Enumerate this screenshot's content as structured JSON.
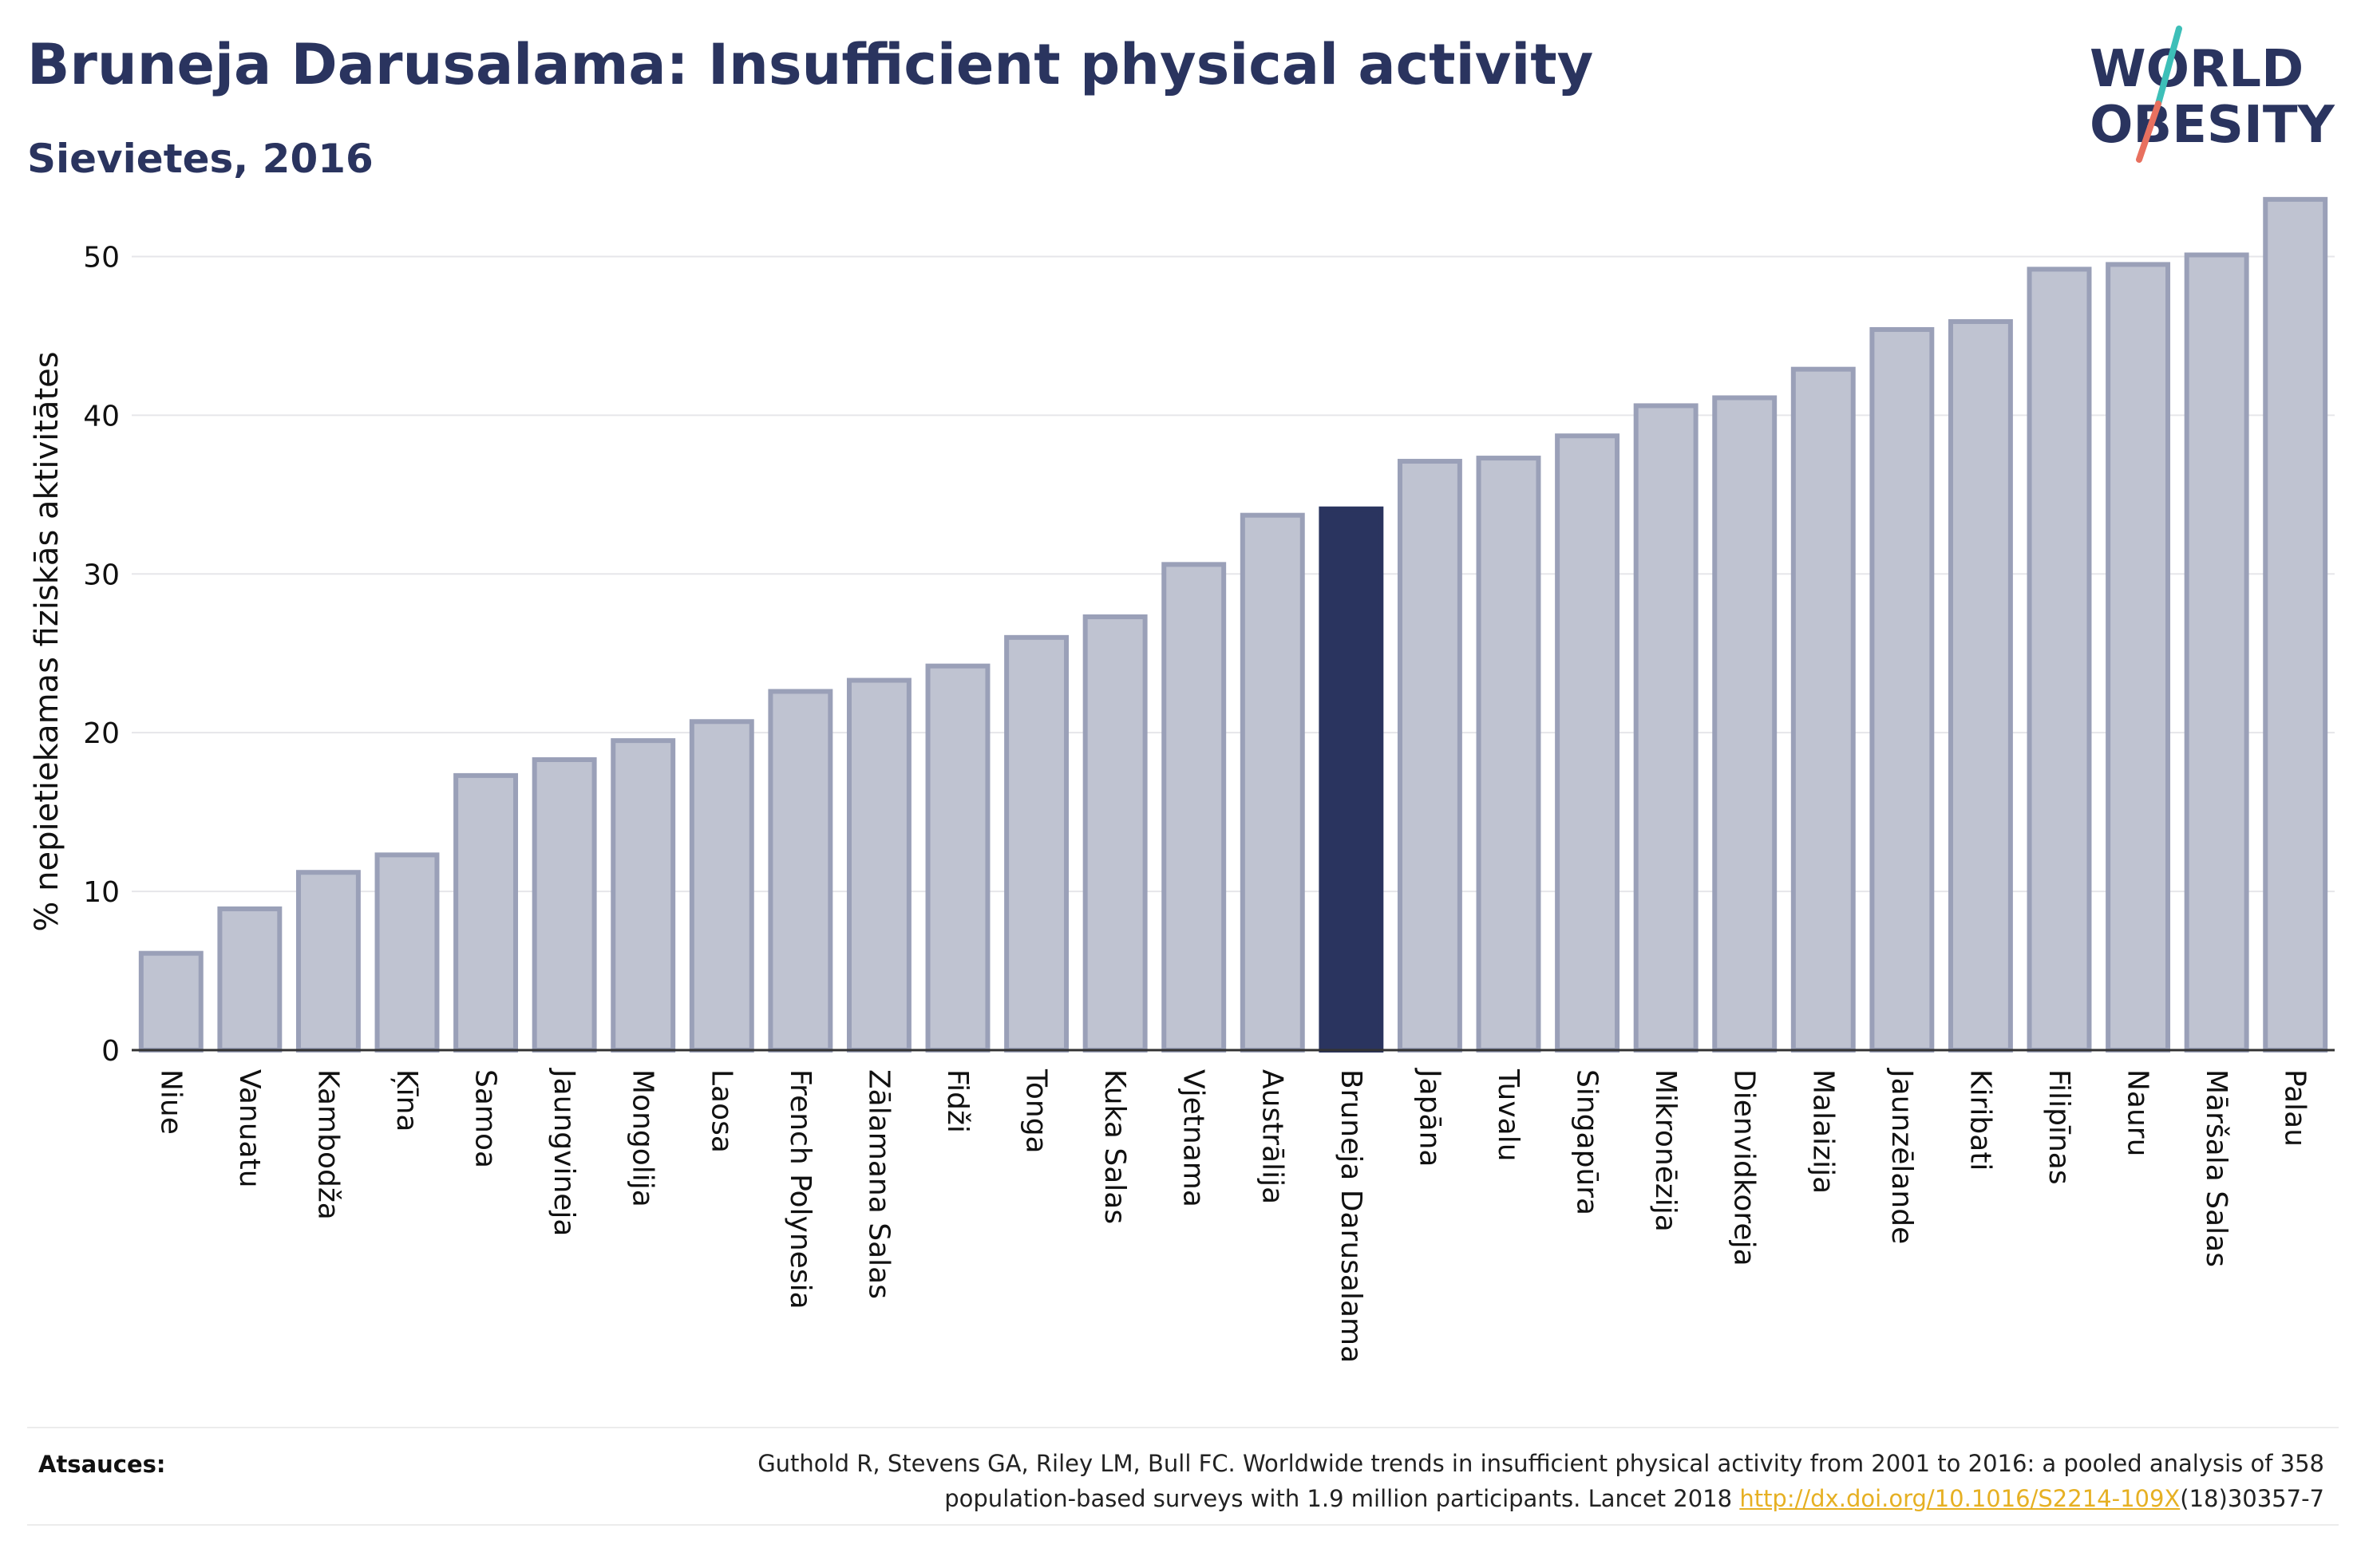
{
  "header": {
    "title": "Bruneja Darusalama: Insufficient physical activity",
    "subtitle": "Sievietes, 2016"
  },
  "logo": {
    "line1": "WORLD",
    "line2": "OBESITY",
    "slash_top_color": "#3dbfb8",
    "slash_bottom_color": "#e8705f",
    "text_color": "#2a345f"
  },
  "colors": {
    "bar_fill": "#bfc3d1",
    "bar_stroke": "#9aa0b8",
    "highlight_fill": "#2a345f",
    "text_dark": "#2a345f",
    "grid": "#e6e6ea",
    "link": "#e6b023"
  },
  "chart_data": {
    "type": "bar",
    "ylabel": "% nepietiekamas fiziskās aktivitātes",
    "ylim": [
      0,
      55
    ],
    "yticks": [
      0,
      10,
      20,
      30,
      40,
      50
    ],
    "grid": true,
    "highlight": "Bruneja Darusalama",
    "categories": [
      "Niue",
      "Vanuatu",
      "Kambodža",
      "Ķīna",
      "Samoa",
      "Jaungvineja",
      "Mongolija",
      "Laosa",
      "French Polynesia",
      "Zālamana Salas",
      "Fidži",
      "Tonga",
      "Kuka Salas",
      "Vjetnama",
      "Austrālija",
      "Bruneja Darusalama",
      "Japāna",
      "Tuvalu",
      "Singapūra",
      "Mikronēzija",
      "Dienvidkoreja",
      "Malaizija",
      "Jaunzēlande",
      "Kiribati",
      "Filipīnas",
      "Nauru",
      "Māršala Salas",
      "Palau"
    ],
    "values": [
      6.1,
      8.9,
      11.2,
      12.3,
      17.3,
      18.3,
      19.5,
      20.7,
      22.6,
      23.3,
      24.2,
      26.0,
      27.3,
      30.6,
      33.7,
      34.1,
      37.1,
      37.3,
      38.7,
      40.6,
      41.1,
      42.9,
      45.4,
      45.9,
      49.2,
      49.5,
      50.1,
      53.6
    ]
  },
  "footer": {
    "label": "Atsauces:",
    "citation_line1": "Guthold R, Stevens GA, Riley LM, Bull FC. Worldwide trends in insufficient physical activity from 2001 to 2016: a pooled analysis of 358",
    "citation_line2_pre": "population-based surveys with 1.9 million participants. Lancet 2018 ",
    "citation_link": "http://dx.doi.org/10.1016/S2214-109X",
    "citation_line2_post": "(18)30357-7"
  }
}
